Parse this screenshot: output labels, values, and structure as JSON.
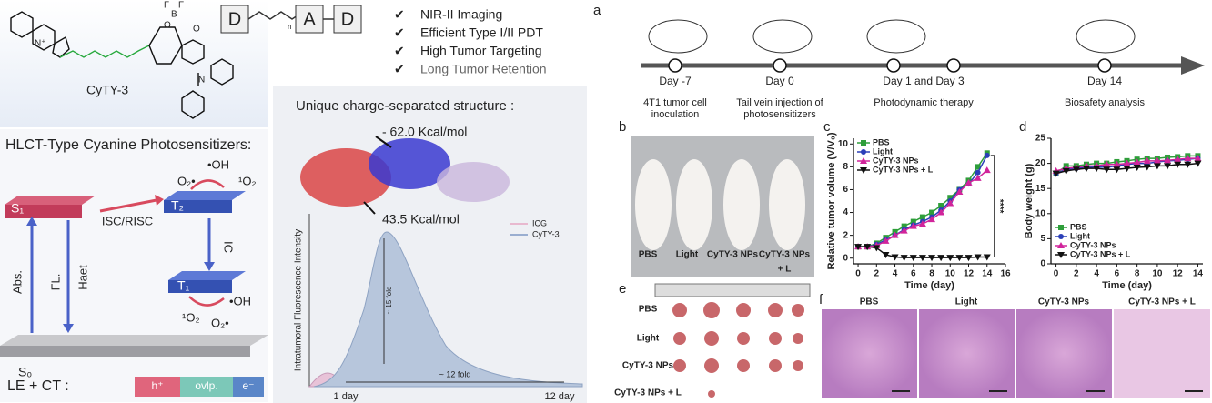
{
  "left_panel": {
    "molecule": {
      "name": "CyTY-3",
      "atoms": [
        "N⁺",
        "O",
        "B",
        "F",
        "F",
        "O",
        "N"
      ]
    },
    "title": "HLCT-Type Cyanine Photosensitizers:",
    "diagram": {
      "states": [
        "S₁",
        "T₂",
        "T₁",
        "S₀"
      ],
      "transitions": [
        "ISC/RISC",
        "IC",
        "Abs.",
        "FL.",
        "Haet"
      ],
      "species_top": [
        "•OH",
        "O₂•",
        "¹O₂"
      ],
      "species_bottom": [
        "•OH",
        "¹O₂",
        "O₂•"
      ]
    },
    "composition": {
      "label": "LE + CT :",
      "parts": [
        "h⁺",
        "ovlp.",
        "e⁻"
      ]
    }
  },
  "middle_panel": {
    "motif": [
      "D",
      "A",
      "D"
    ],
    "motif_index": "n",
    "features": [
      "NIR-II Imaging",
      "Efficient Type I/II PDT",
      "High Tumor Targeting",
      "Long Tumor Retention"
    ],
    "structure_title": "Unique charge-separated structure :",
    "potentials": [
      "- 62.0 Kcal/mol",
      "43.5 Kcal/mol"
    ],
    "fluorescence": {
      "y_label": "Intratumoral Fluorescence Intensity",
      "legend": [
        "ICG",
        "CyTY-3"
      ],
      "annotations": [
        "~ 15 fold",
        "~ 12 fold"
      ],
      "x_labels": [
        "1 day",
        "12 day"
      ]
    }
  },
  "panel_letters": [
    "a",
    "b",
    "c",
    "d",
    "e",
    "f"
  ],
  "timeline": {
    "days": [
      "Day -7",
      "Day 0",
      "Day 1 and Day 3",
      "Day 14"
    ],
    "events": [
      [
        "4T1 tumor cell",
        "inoculation"
      ],
      [
        "Tail vein injection of",
        "photosensitizers"
      ],
      [
        "Photodynamic therapy"
      ],
      [
        "Biosafety analysis"
      ]
    ]
  },
  "photo_labels": [
    "PBS",
    "Light",
    "CyTY-3 NPs",
    [
      "CyTY-3 NPs",
      "+ L"
    ]
  ],
  "chart_data": [
    {
      "type": "line",
      "x_label": "Time (day)",
      "y_label": "Relative tumor volume (V/V₀)",
      "x": [
        0,
        1,
        2,
        3,
        4,
        5,
        6,
        7,
        8,
        9,
        10,
        11,
        12,
        13,
        14
      ],
      "xlim": [
        -0.5,
        16
      ],
      "xticks": [
        0,
        2,
        4,
        6,
        8,
        10,
        12,
        14,
        16
      ],
      "ylim": [
        -0.5,
        10.5
      ],
      "yticks": [
        0,
        2,
        4,
        6,
        8,
        10
      ],
      "legend": "upper left",
      "annotation": "****",
      "series": [
        {
          "name": "PBS",
          "color": "#2e9e3a",
          "marker": "square",
          "values": [
            1,
            1,
            1.3,
            1.8,
            2.3,
            2.8,
            3.2,
            3.6,
            4.0,
            4.6,
            5.3,
            6.0,
            6.8,
            8.0,
            9.2
          ]
        },
        {
          "name": "Light",
          "color": "#2b3fb8",
          "marker": "circle",
          "values": [
            1,
            1,
            1.2,
            1.6,
            2.0,
            2.5,
            2.9,
            3.2,
            3.6,
            4.2,
            5.0,
            6.0,
            6.5,
            7.5,
            9.0
          ]
        },
        {
          "name": "CyTY-3 NPs",
          "color": "#d1249b",
          "marker": "triangle",
          "values": [
            1,
            1,
            1.1,
            1.5,
            2.0,
            2.4,
            2.8,
            3.0,
            3.4,
            4.0,
            4.8,
            5.8,
            6.6,
            7.0,
            7.7
          ]
        },
        {
          "name": "CyTY-3 NPs + L",
          "color": "#111111",
          "marker": "down",
          "values": [
            1,
            1,
            0.9,
            0.3,
            0.1,
            0.05,
            0.05,
            0.05,
            0.05,
            0.05,
            0.05,
            0.05,
            0.05,
            0.1,
            0.1
          ]
        }
      ]
    },
    {
      "type": "line",
      "x_label": "Time (day)",
      "y_label": "Body weight (g)",
      "x": [
        0,
        1,
        2,
        3,
        4,
        5,
        6,
        7,
        8,
        9,
        10,
        11,
        12,
        13,
        14
      ],
      "xlim": [
        -0.5,
        14.5
      ],
      "xticks": [
        0,
        2,
        4,
        6,
        8,
        10,
        12,
        14
      ],
      "ylim": [
        0,
        25
      ],
      "yticks": [
        0,
        5,
        10,
        15,
        20,
        25
      ],
      "legend": "lower left",
      "series": [
        {
          "name": "PBS",
          "color": "#2e9e3a",
          "marker": "square",
          "values": [
            18,
            19.5,
            19.5,
            19.8,
            20,
            20,
            20.3,
            20.5,
            20.8,
            21,
            21,
            21.2,
            21.3,
            21.5,
            21.5
          ]
        },
        {
          "name": "Light",
          "color": "#2b3fb8",
          "marker": "circle",
          "values": [
            18,
            18.8,
            19,
            19.2,
            19.3,
            19.2,
            19.5,
            19.8,
            20,
            20,
            20.3,
            20.5,
            20.6,
            20.8,
            21
          ]
        },
        {
          "name": "CyTY-3 NPs",
          "color": "#d1249b",
          "marker": "triangle",
          "values": [
            18.5,
            19,
            19.2,
            19.5,
            19.5,
            19.8,
            19.8,
            20,
            20.2,
            20.5,
            20.5,
            20.6,
            20.8,
            21,
            21
          ]
        },
        {
          "name": "CyTY-3 NPs + L",
          "color": "#111111",
          "marker": "down",
          "values": [
            18,
            18.5,
            18.8,
            19,
            19,
            18.8,
            18.8,
            19,
            19.2,
            19.3,
            19.5,
            19.5,
            19.8,
            19.8,
            20
          ]
        }
      ]
    }
  ],
  "tumor_labels": [
    "PBS",
    "Light",
    "CyTY-3 NPs",
    "CyTY-3 NPs + L"
  ],
  "histology_labels": [
    "PBS",
    "Light",
    "CyTY-3 NPs",
    "CyTY-3 NPs + L"
  ]
}
